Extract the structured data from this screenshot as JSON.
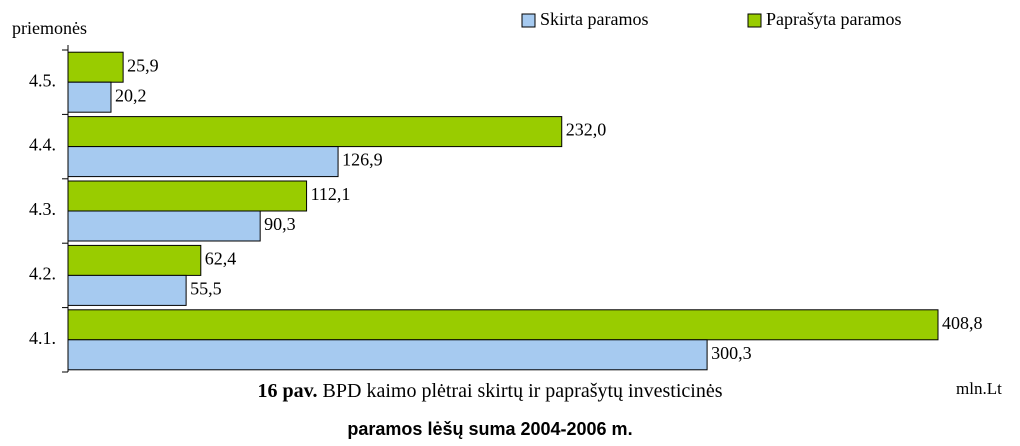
{
  "chart_data": {
    "type": "hbar",
    "y_axis_label": "priemonės",
    "unit_label": "mln.Lt",
    "title_number": "16 pav.",
    "title_line1": "BPD kaimo plėtrai skirtų ir paprašytų investicinės",
    "title_line2": "paramos lėšų suma 2004-2006 m.",
    "categories": [
      "4.5.",
      "4.4.",
      "4.3.",
      "4.2.",
      "4.1."
    ],
    "series": [
      {
        "name": "Paprašyta paramos",
        "color": "#99cc00",
        "values": [
          25.9,
          232.0,
          112.1,
          62.4,
          408.8
        ],
        "value_labels": [
          "25,9",
          "232,0",
          "112,1",
          "62,4",
          "408,8"
        ]
      },
      {
        "name": "Skirta paramos",
        "color": "#a6caf0",
        "values": [
          20.2,
          126.9,
          90.3,
          55.5,
          300.3
        ],
        "value_labels": [
          "20,2",
          "126,9",
          "90,3",
          "55,5",
          "300,3"
        ]
      }
    ],
    "legend": "top-right"
  }
}
